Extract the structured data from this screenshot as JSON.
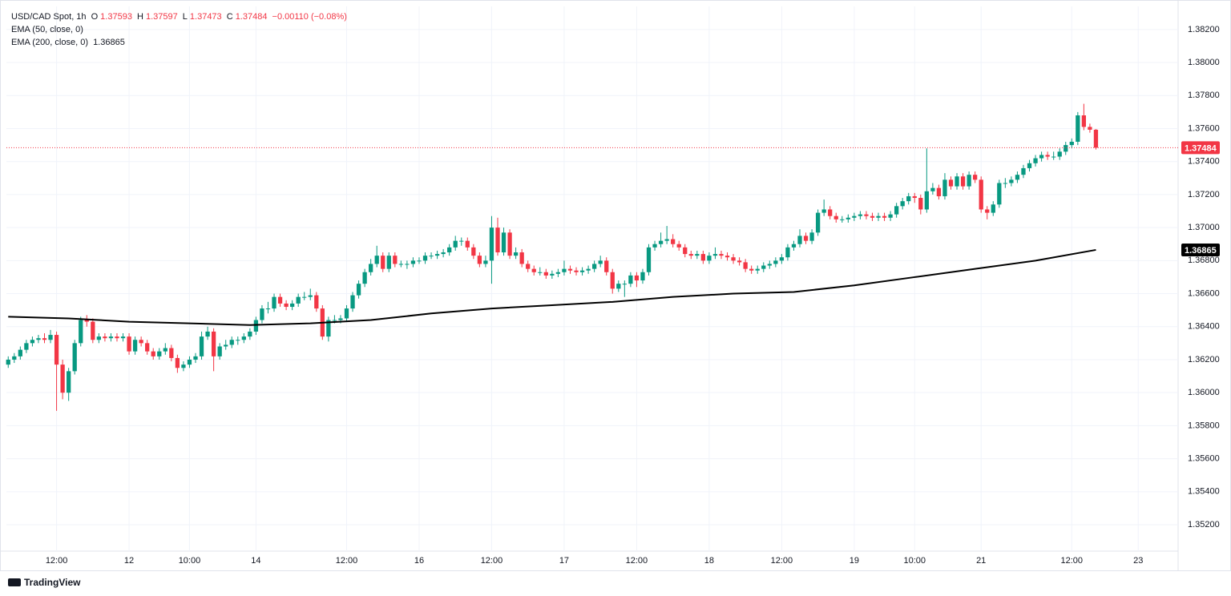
{
  "chart_data": {
    "type": "candlestick",
    "symbol": "USD/CAD Spot, 1h",
    "ohlc_labels": [
      "O",
      "H",
      "L",
      "C"
    ],
    "change": "−0.00110 (−0.08%)",
    "brand": "TradingView",
    "up_color": "#089981",
    "down_color": "#f23645",
    "grid": true,
    "ylim": [
      1.3504,
      1.3834
    ],
    "yticks": [
      {
        "value": 1.382,
        "label": "1.38200"
      },
      {
        "value": 1.38,
        "label": "1.38000"
      },
      {
        "value": 1.378,
        "label": "1.37800"
      },
      {
        "value": 1.376,
        "label": "1.37600"
      },
      {
        "value": 1.374,
        "label": "1.37400"
      },
      {
        "value": 1.372,
        "label": "1.37200"
      },
      {
        "value": 1.37,
        "label": "1.37000"
      },
      {
        "value": 1.368,
        "label": "1.36800"
      },
      {
        "value": 1.366,
        "label": "1.36600"
      },
      {
        "value": 1.364,
        "label": "1.36400"
      },
      {
        "value": 1.362,
        "label": "1.36200"
      },
      {
        "value": 1.36,
        "label": "1.36000"
      },
      {
        "value": 1.358,
        "label": "1.35800"
      },
      {
        "value": 1.356,
        "label": "1.35600"
      },
      {
        "value": 1.354,
        "label": "1.35400"
      },
      {
        "value": 1.352,
        "label": "1.35200"
      }
    ],
    "xlim": [
      -0.3,
      193.6
    ],
    "xticks": [
      {
        "value": 8,
        "label": "12:00"
      },
      {
        "value": 20,
        "label": "12"
      },
      {
        "value": 30,
        "label": "10:00"
      },
      {
        "value": 41,
        "label": "14"
      },
      {
        "value": 56,
        "label": "12:00"
      },
      {
        "value": 68,
        "label": "16"
      },
      {
        "value": 80,
        "label": "12:00"
      },
      {
        "value": 92,
        "label": "17"
      },
      {
        "value": 104,
        "label": "12:00"
      },
      {
        "value": 116,
        "label": "18"
      },
      {
        "value": 128,
        "label": "12:00"
      },
      {
        "value": 140,
        "label": "19"
      },
      {
        "value": 150,
        "label": "10:00"
      },
      {
        "value": 161,
        "label": "21"
      },
      {
        "value": 176,
        "label": "12:00"
      },
      {
        "value": 187,
        "label": "23"
      }
    ],
    "ema50": {
      "name": "EMA (50, close, 0)"
    },
    "ema200": {
      "name": "EMA (200, close, 0)",
      "color": "#000000",
      "x": [
        0,
        10,
        20,
        30,
        40,
        50,
        60,
        70,
        80,
        90,
        100,
        110,
        120,
        130,
        140,
        150,
        160,
        170,
        180
      ],
      "values": [
        1.3646,
        1.3645,
        1.3643,
        1.3642,
        1.3641,
        1.3642,
        1.3644,
        1.3648,
        1.3651,
        1.3653,
        1.3655,
        1.3658,
        1.366,
        1.3661,
        1.3665,
        1.367,
        1.3675,
        1.368,
        1.36865
      ]
    },
    "candles": [
      [
        1.3617,
        1.3622,
        1.3615,
        1.362
      ],
      [
        1.362,
        1.3624,
        1.3618,
        1.3622
      ],
      [
        1.3622,
        1.3628,
        1.362,
        1.3626
      ],
      [
        1.3626,
        1.3632,
        1.3624,
        1.363
      ],
      [
        1.363,
        1.3634,
        1.3628,
        1.3632
      ],
      [
        1.3632,
        1.3635,
        1.363,
        1.3633
      ],
      [
        1.3633,
        1.3636,
        1.363,
        1.3632
      ],
      [
        1.3632,
        1.3638,
        1.363,
        1.3635
      ],
      [
        1.3635,
        1.3637,
        1.3589,
        1.3617
      ],
      [
        1.3617,
        1.362,
        1.3596,
        1.36
      ],
      [
        1.36,
        1.3615,
        1.3595,
        1.3613
      ],
      [
        1.3613,
        1.3632,
        1.3611,
        1.363
      ],
      [
        1.363,
        1.3646,
        1.3628,
        1.3644
      ],
      [
        1.3644,
        1.3647,
        1.364,
        1.3643
      ],
      [
        1.3643,
        1.3645,
        1.363,
        1.3632
      ],
      [
        1.3632,
        1.3636,
        1.363,
        1.3634
      ],
      [
        1.3634,
        1.3636,
        1.3631,
        1.3633
      ],
      [
        1.3633,
        1.3636,
        1.3631,
        1.3634
      ],
      [
        1.3634,
        1.3636,
        1.3631,
        1.3633
      ],
      [
        1.3633,
        1.3636,
        1.3631,
        1.3634
      ],
      [
        1.3634,
        1.3636,
        1.3623,
        1.3625
      ],
      [
        1.3625,
        1.3634,
        1.3623,
        1.3632
      ],
      [
        1.3632,
        1.3634,
        1.3628,
        1.363
      ],
      [
        1.363,
        1.3632,
        1.3623,
        1.3625
      ],
      [
        1.3625,
        1.3627,
        1.362,
        1.3622
      ],
      [
        1.3622,
        1.3627,
        1.362,
        1.3625
      ],
      [
        1.3625,
        1.363,
        1.3623,
        1.3627
      ],
      [
        1.3627,
        1.3629,
        1.3619,
        1.3621
      ],
      [
        1.3621,
        1.3623,
        1.3612,
        1.3615
      ],
      [
        1.3615,
        1.3619,
        1.3613,
        1.3617
      ],
      [
        1.3617,
        1.3622,
        1.3615,
        1.362
      ],
      [
        1.362,
        1.3624,
        1.3618,
        1.3622
      ],
      [
        1.3622,
        1.3637,
        1.362,
        1.3634
      ],
      [
        1.3634,
        1.364,
        1.3632,
        1.3637
      ],
      [
        1.3637,
        1.3639,
        1.3613,
        1.3622
      ],
      [
        1.3622,
        1.363,
        1.362,
        1.3628
      ],
      [
        1.3628,
        1.3632,
        1.3626,
        1.3629
      ],
      [
        1.3629,
        1.3634,
        1.3627,
        1.3632
      ],
      [
        1.3632,
        1.3634,
        1.3629,
        1.3632
      ],
      [
        1.3632,
        1.3636,
        1.363,
        1.3634
      ],
      [
        1.3634,
        1.3639,
        1.3632,
        1.3637
      ],
      [
        1.3637,
        1.3646,
        1.3635,
        1.3644
      ],
      [
        1.3644,
        1.3653,
        1.3642,
        1.3651
      ],
      [
        1.3651,
        1.3655,
        1.3648,
        1.3651
      ],
      [
        1.3651,
        1.366,
        1.3649,
        1.3658
      ],
      [
        1.3658,
        1.366,
        1.3652,
        1.3654
      ],
      [
        1.3654,
        1.3656,
        1.365,
        1.3652
      ],
      [
        1.3652,
        1.3656,
        1.365,
        1.3654
      ],
      [
        1.3654,
        1.366,
        1.3652,
        1.3658
      ],
      [
        1.3658,
        1.3661,
        1.3656,
        1.3658
      ],
      [
        1.3658,
        1.3663,
        1.3656,
        1.3659
      ],
      [
        1.3659,
        1.3661,
        1.3649,
        1.3651
      ],
      [
        1.3651,
        1.3653,
        1.3632,
        1.3634
      ],
      [
        1.3634,
        1.3646,
        1.3631,
        1.3644
      ],
      [
        1.3644,
        1.3647,
        1.3642,
        1.3644
      ],
      [
        1.3644,
        1.3647,
        1.3642,
        1.3645
      ],
      [
        1.3645,
        1.3653,
        1.3643,
        1.3651
      ],
      [
        1.3651,
        1.3661,
        1.3649,
        1.3659
      ],
      [
        1.3659,
        1.3668,
        1.3657,
        1.3666
      ],
      [
        1.3666,
        1.3675,
        1.3664,
        1.3673
      ],
      [
        1.3673,
        1.3681,
        1.3671,
        1.3678
      ],
      [
        1.3678,
        1.3689,
        1.3676,
        1.3683
      ],
      [
        1.3683,
        1.3685,
        1.3673,
        1.3675
      ],
      [
        1.3675,
        1.3685,
        1.3673,
        1.3683
      ],
      [
        1.3683,
        1.3685,
        1.3676,
        1.3678
      ],
      [
        1.3678,
        1.368,
        1.3676,
        1.3678
      ],
      [
        1.3678,
        1.368,
        1.3675,
        1.3678
      ],
      [
        1.3678,
        1.3682,
        1.3676,
        1.368
      ],
      [
        1.368,
        1.3682,
        1.3678,
        1.368
      ],
      [
        1.368,
        1.3685,
        1.3678,
        1.3683
      ],
      [
        1.3683,
        1.3685,
        1.3681,
        1.3683
      ],
      [
        1.3683,
        1.3686,
        1.3681,
        1.3684
      ],
      [
        1.3684,
        1.3687,
        1.3682,
        1.3685
      ],
      [
        1.3685,
        1.369,
        1.3683,
        1.3688
      ],
      [
        1.3688,
        1.3695,
        1.3686,
        1.3692
      ],
      [
        1.3692,
        1.3694,
        1.3689,
        1.3692
      ],
      [
        1.3692,
        1.3694,
        1.3686,
        1.3688
      ],
      [
        1.3688,
        1.369,
        1.3681,
        1.3683
      ],
      [
        1.3683,
        1.3685,
        1.3676,
        1.3678
      ],
      [
        1.3678,
        1.3683,
        1.3676,
        1.368
      ],
      [
        1.368,
        1.3707,
        1.3666,
        1.37
      ],
      [
        1.37,
        1.3706,
        1.3683,
        1.3685
      ],
      [
        1.3685,
        1.37,
        1.3683,
        1.3697
      ],
      [
        1.3697,
        1.3699,
        1.3681,
        1.3683
      ],
      [
        1.3683,
        1.3688,
        1.3681,
        1.3685
      ],
      [
        1.3685,
        1.3687,
        1.3676,
        1.3678
      ],
      [
        1.3678,
        1.368,
        1.3673,
        1.3675
      ],
      [
        1.3675,
        1.3677,
        1.3671,
        1.3673
      ],
      [
        1.3673,
        1.3676,
        1.3671,
        1.3673
      ],
      [
        1.3673,
        1.3675,
        1.3669,
        1.3671
      ],
      [
        1.3671,
        1.3674,
        1.3669,
        1.3672
      ],
      [
        1.3672,
        1.3675,
        1.367,
        1.3673
      ],
      [
        1.3673,
        1.368,
        1.3671,
        1.3675
      ],
      [
        1.3675,
        1.3677,
        1.3672,
        1.3674
      ],
      [
        1.3674,
        1.3676,
        1.3671,
        1.3673
      ],
      [
        1.3673,
        1.3676,
        1.3671,
        1.3674
      ],
      [
        1.3674,
        1.3677,
        1.3672,
        1.3675
      ],
      [
        1.3675,
        1.368,
        1.3673,
        1.3678
      ],
      [
        1.3678,
        1.3683,
        1.3676,
        1.368
      ],
      [
        1.368,
        1.3682,
        1.3671,
        1.3673
      ],
      [
        1.3673,
        1.3675,
        1.366,
        1.3663
      ],
      [
        1.3663,
        1.3668,
        1.3661,
        1.3666
      ],
      [
        1.3666,
        1.3668,
        1.3658,
        1.3666
      ],
      [
        1.3666,
        1.3673,
        1.3664,
        1.3671
      ],
      [
        1.3671,
        1.3673,
        1.3664,
        1.3668
      ],
      [
        1.3668,
        1.3675,
        1.3666,
        1.3673
      ],
      [
        1.3673,
        1.369,
        1.3671,
        1.3688
      ],
      [
        1.3688,
        1.3692,
        1.3686,
        1.369
      ],
      [
        1.369,
        1.3697,
        1.3688,
        1.3692
      ],
      [
        1.3692,
        1.3701,
        1.369,
        1.3693
      ],
      [
        1.3693,
        1.3696,
        1.3688,
        1.369
      ],
      [
        1.369,
        1.3692,
        1.3686,
        1.3688
      ],
      [
        1.3688,
        1.369,
        1.3682,
        1.3684
      ],
      [
        1.3684,
        1.3686,
        1.3681,
        1.3683
      ],
      [
        1.3683,
        1.3686,
        1.3681,
        1.3684
      ],
      [
        1.3684,
        1.3686,
        1.3678,
        1.368
      ],
      [
        1.368,
        1.3685,
        1.3678,
        1.3683
      ],
      [
        1.3683,
        1.3688,
        1.3681,
        1.3684
      ],
      [
        1.3684,
        1.3686,
        1.3681,
        1.3683
      ],
      [
        1.3683,
        1.3685,
        1.368,
        1.3682
      ],
      [
        1.3682,
        1.3684,
        1.3678,
        1.368
      ],
      [
        1.368,
        1.3682,
        1.3677,
        1.3679
      ],
      [
        1.3679,
        1.3681,
        1.3673,
        1.3675
      ],
      [
        1.3675,
        1.3677,
        1.3672,
        1.3674
      ],
      [
        1.3674,
        1.3677,
        1.3672,
        1.3675
      ],
      [
        1.3675,
        1.3679,
        1.3673,
        1.3677
      ],
      [
        1.3677,
        1.368,
        1.3675,
        1.3678
      ],
      [
        1.3678,
        1.3682,
        1.3676,
        1.368
      ],
      [
        1.368,
        1.3684,
        1.3678,
        1.3682
      ],
      [
        1.3682,
        1.369,
        1.368,
        1.3688
      ],
      [
        1.3688,
        1.3692,
        1.3686,
        1.369
      ],
      [
        1.369,
        1.3699,
        1.3688,
        1.3695
      ],
      [
        1.3695,
        1.3697,
        1.369,
        1.3692
      ],
      [
        1.3692,
        1.3699,
        1.369,
        1.3697
      ],
      [
        1.3697,
        1.3711,
        1.3695,
        1.3709
      ],
      [
        1.3709,
        1.3717,
        1.3707,
        1.3711
      ],
      [
        1.3711,
        1.3713,
        1.3705,
        1.3707
      ],
      [
        1.3707,
        1.3709,
        1.3703,
        1.3705
      ],
      [
        1.3705,
        1.3707,
        1.3703,
        1.3705
      ],
      [
        1.3705,
        1.3708,
        1.3703,
        1.3706
      ],
      [
        1.3706,
        1.3709,
        1.3704,
        1.3707
      ],
      [
        1.3707,
        1.371,
        1.3705,
        1.3708
      ],
      [
        1.3708,
        1.371,
        1.3705,
        1.3707
      ],
      [
        1.3707,
        1.3709,
        1.3704,
        1.3706
      ],
      [
        1.3706,
        1.3709,
        1.3704,
        1.3707
      ],
      [
        1.3707,
        1.3709,
        1.3704,
        1.3706
      ],
      [
        1.3706,
        1.371,
        1.3704,
        1.3708
      ],
      [
        1.3708,
        1.3715,
        1.3706,
        1.3713
      ],
      [
        1.3713,
        1.3718,
        1.3711,
        1.3716
      ],
      [
        1.3716,
        1.3721,
        1.3714,
        1.3719
      ],
      [
        1.3719,
        1.3721,
        1.3715,
        1.3718
      ],
      [
        1.3718,
        1.372,
        1.3708,
        1.3711
      ],
      [
        1.3711,
        1.3748,
        1.3709,
        1.3722
      ],
      [
        1.3722,
        1.3727,
        1.372,
        1.3724
      ],
      [
        1.3724,
        1.3726,
        1.3717,
        1.3719
      ],
      [
        1.3719,
        1.3733,
        1.3717,
        1.3729
      ],
      [
        1.3729,
        1.3731,
        1.3723,
        1.3725
      ],
      [
        1.3725,
        1.3733,
        1.3723,
        1.3731
      ],
      [
        1.3731,
        1.3733,
        1.3723,
        1.3725
      ],
      [
        1.3725,
        1.3734,
        1.3723,
        1.3732
      ],
      [
        1.3732,
        1.3734,
        1.3727,
        1.3729
      ],
      [
        1.3729,
        1.3731,
        1.3709,
        1.3711
      ],
      [
        1.3711,
        1.3713,
        1.3705,
        1.3709
      ],
      [
        1.3709,
        1.3716,
        1.3707,
        1.3714
      ],
      [
        1.3714,
        1.3729,
        1.3712,
        1.3727
      ],
      [
        1.3727,
        1.373,
        1.3724,
        1.3727
      ],
      [
        1.3727,
        1.3731,
        1.3725,
        1.3729
      ],
      [
        1.3729,
        1.3734,
        1.3727,
        1.3732
      ],
      [
        1.3732,
        1.3738,
        1.373,
        1.3736
      ],
      [
        1.3736,
        1.3741,
        1.3734,
        1.3739
      ],
      [
        1.3739,
        1.3744,
        1.3737,
        1.3742
      ],
      [
        1.3742,
        1.3746,
        1.374,
        1.3744
      ],
      [
        1.3744,
        1.3746,
        1.3741,
        1.3743
      ],
      [
        1.3743,
        1.3746,
        1.3741,
        1.3743
      ],
      [
        1.3743,
        1.3748,
        1.3741,
        1.3746
      ],
      [
        1.3746,
        1.3752,
        1.3744,
        1.375
      ],
      [
        1.375,
        1.3754,
        1.3748,
        1.3752
      ],
      [
        1.3752,
        1.377,
        1.375,
        1.3768
      ],
      [
        1.3768,
        1.3775,
        1.3759,
        1.3761
      ],
      [
        1.3761,
        1.3763,
        1.37575,
        1.37593
      ],
      [
        1.37593,
        1.37597,
        1.37473,
        1.37484
      ]
    ]
  }
}
